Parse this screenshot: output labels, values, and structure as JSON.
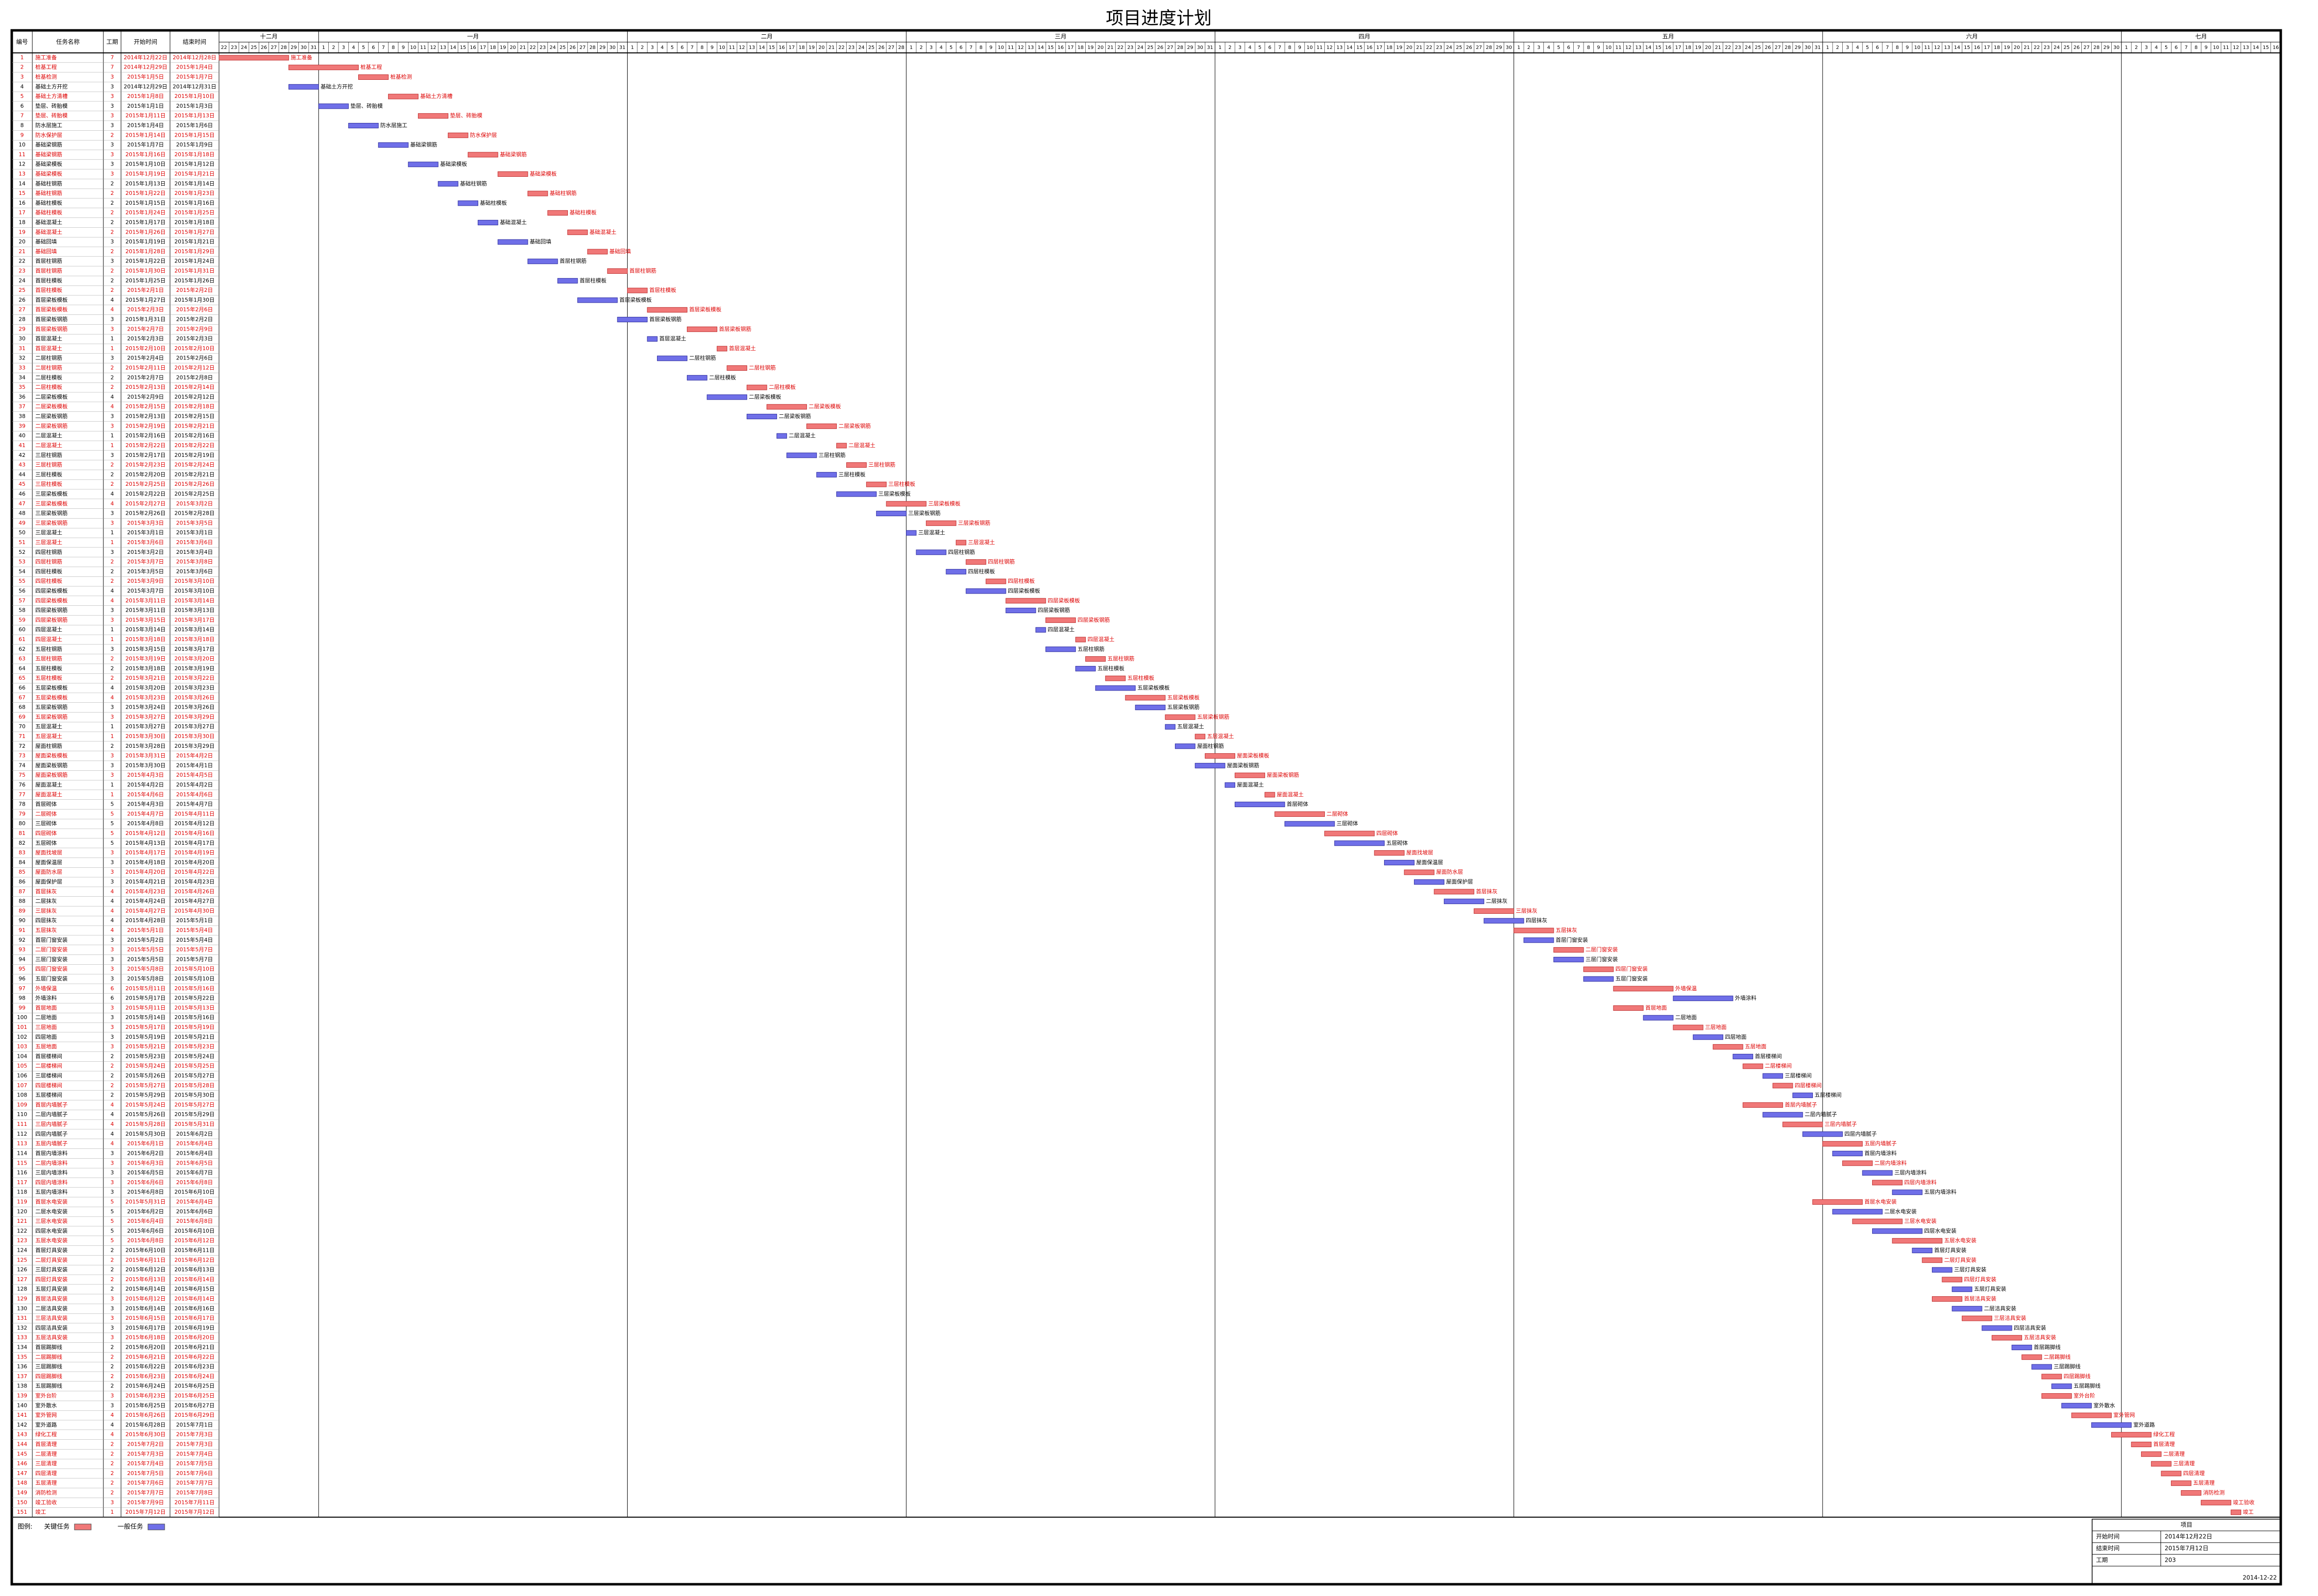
{
  "title": "项目进度计划",
  "columns": [
    "编号",
    "任务名称",
    "工期",
    "开始时间",
    "结束时间"
  ],
  "months": [
    {
      "name": "十二月",
      "days": [
        22,
        23,
        24,
        25,
        26,
        27,
        28,
        29,
        30,
        31
      ]
    },
    {
      "name": "一月",
      "days": [
        1,
        2,
        3,
        4,
        5,
        6,
        7,
        8,
        9,
        10,
        11,
        12,
        13,
        14,
        15,
        16,
        17,
        18,
        19,
        20,
        21,
        22,
        23,
        24,
        25,
        26,
        27,
        28,
        29,
        30,
        31
      ]
    },
    {
      "name": "二月",
      "days": [
        1,
        2,
        3,
        4,
        5,
        6,
        7,
        8,
        9,
        10,
        11,
        12,
        13,
        14,
        15,
        16,
        17,
        18,
        19,
        20,
        21,
        22,
        23,
        24,
        25,
        26,
        27,
        28
      ]
    },
    {
      "name": "三月",
      "days": [
        1,
        2,
        3,
        4,
        5,
        6,
        7,
        8,
        9,
        10,
        11,
        12,
        13,
        14,
        15,
        16,
        17,
        18,
        19,
        20,
        21,
        22,
        23,
        24,
        25,
        26,
        27,
        28,
        29,
        30,
        31
      ]
    },
    {
      "name": "四月",
      "days": [
        1,
        2,
        3,
        4,
        5,
        6,
        7,
        8,
        9,
        10,
        11,
        12,
        13,
        14,
        15,
        16,
        17,
        18,
        19,
        20,
        21,
        22,
        23,
        24,
        25,
        26,
        27,
        28,
        29,
        30
      ]
    },
    {
      "name": "五月",
      "days": [
        1,
        2,
        3,
        4,
        5,
        6,
        7,
        8,
        9,
        10,
        11,
        12,
        13,
        14,
        15,
        16,
        17,
        18,
        19,
        20,
        21,
        22,
        23,
        24,
        25,
        26,
        27,
        28,
        29,
        30,
        31
      ]
    },
    {
      "name": "六月",
      "days": [
        1,
        2,
        3,
        4,
        5,
        6,
        7,
        8,
        9,
        10,
        11,
        12,
        13,
        14,
        15,
        16,
        17,
        18,
        19,
        20,
        21,
        22,
        23,
        24,
        25,
        26,
        27,
        28,
        29,
        30
      ]
    },
    {
      "name": "七月",
      "days": [
        1,
        2,
        3,
        4,
        5,
        6,
        7,
        8,
        9,
        10,
        11,
        12,
        13,
        14,
        15,
        16
      ]
    }
  ],
  "tasks": [
    [
      1,
      "施工准备",
      7,
      "2014年12月22日",
      "2014年12月28日",
      true
    ],
    [
      2,
      "桩基工程",
      7,
      "2014年12月29日",
      "2015年1月4日",
      true
    ],
    [
      3,
      "桩基检测",
      3,
      "2015年1月5日",
      "2015年1月7日",
      true
    ],
    [
      4,
      "基础土方开挖",
      3,
      "2014年12月29日",
      "2014年12月31日",
      false
    ],
    [
      5,
      "基础土方清槽",
      3,
      "2015年1月8日",
      "2015年1月10日",
      true
    ],
    [
      6,
      "垫层、砖胎模",
      3,
      "2015年1月1日",
      "2015年1月3日",
      false
    ],
    [
      7,
      "垫层、砖胎模",
      3,
      "2015年1月11日",
      "2015年1月13日",
      true
    ],
    [
      8,
      "防水层施工",
      3,
      "2015年1月4日",
      "2015年1月6日",
      false
    ],
    [
      9,
      "防水保护层",
      2,
      "2015年1月14日",
      "2015年1月15日",
      true
    ],
    [
      10,
      "基础梁钢筋",
      3,
      "2015年1月7日",
      "2015年1月9日",
      false
    ],
    [
      11,
      "基础梁钢筋",
      3,
      "2015年1月16日",
      "2015年1月18日",
      true
    ],
    [
      12,
      "基础梁模板",
      3,
      "2015年1月10日",
      "2015年1月12日",
      false
    ],
    [
      13,
      "基础梁模板",
      3,
      "2015年1月19日",
      "2015年1月21日",
      true
    ],
    [
      14,
      "基础柱钢筋",
      2,
      "2015年1月13日",
      "2015年1月14日",
      false
    ],
    [
      15,
      "基础柱钢筋",
      2,
      "2015年1月22日",
      "2015年1月23日",
      true
    ],
    [
      16,
      "基础柱模板",
      2,
      "2015年1月15日",
      "2015年1月16日",
      false
    ],
    [
      17,
      "基础柱模板",
      2,
      "2015年1月24日",
      "2015年1月25日",
      true
    ],
    [
      18,
      "基础混凝土",
      2,
      "2015年1月17日",
      "2015年1月18日",
      false
    ],
    [
      19,
      "基础混凝土",
      2,
      "2015年1月26日",
      "2015年1月27日",
      true
    ],
    [
      20,
      "基础回填",
      3,
      "2015年1月19日",
      "2015年1月21日",
      false
    ],
    [
      21,
      "基础回填",
      2,
      "2015年1月28日",
      "2015年1月29日",
      true
    ],
    [
      22,
      "首层柱钢筋",
      3,
      "2015年1月22日",
      "2015年1月24日",
      false
    ],
    [
      23,
      "首层柱钢筋",
      2,
      "2015年1月30日",
      "2015年1月31日",
      true
    ],
    [
      24,
      "首层柱模板",
      2,
      "2015年1月25日",
      "2015年1月26日",
      false
    ],
    [
      25,
      "首层柱模板",
      2,
      "2015年2月1日",
      "2015年2月2日",
      true
    ],
    [
      26,
      "首层梁板模板",
      4,
      "2015年1月27日",
      "2015年1月30日",
      false
    ],
    [
      27,
      "首层梁板模板",
      4,
      "2015年2月3日",
      "2015年2月6日",
      true
    ],
    [
      28,
      "首层梁板钢筋",
      3,
      "2015年1月31日",
      "2015年2月2日",
      false
    ],
    [
      29,
      "首层梁板钢筋",
      3,
      "2015年2月7日",
      "2015年2月9日",
      true
    ],
    [
      30,
      "首层混凝土",
      1,
      "2015年2月3日",
      "2015年2月3日",
      false
    ],
    [
      31,
      "首层混凝土",
      1,
      "2015年2月10日",
      "2015年2月10日",
      true
    ],
    [
      32,
      "二层柱钢筋",
      3,
      "2015年2月4日",
      "2015年2月6日",
      false
    ],
    [
      33,
      "二层柱钢筋",
      2,
      "2015年2月11日",
      "2015年2月12日",
      true
    ],
    [
      34,
      "二层柱模板",
      2,
      "2015年2月7日",
      "2015年2月8日",
      false
    ],
    [
      35,
      "二层柱模板",
      2,
      "2015年2月13日",
      "2015年2月14日",
      true
    ],
    [
      36,
      "二层梁板模板",
      4,
      "2015年2月9日",
      "2015年2月12日",
      false
    ],
    [
      37,
      "二层梁板模板",
      4,
      "2015年2月15日",
      "2015年2月18日",
      true
    ],
    [
      38,
      "二层梁板钢筋",
      3,
      "2015年2月13日",
      "2015年2月15日",
      false
    ],
    [
      39,
      "二层梁板钢筋",
      3,
      "2015年2月19日",
      "2015年2月21日",
      true
    ],
    [
      40,
      "二层混凝土",
      1,
      "2015年2月16日",
      "2015年2月16日",
      false
    ],
    [
      41,
      "二层混凝土",
      1,
      "2015年2月22日",
      "2015年2月22日",
      true
    ],
    [
      42,
      "三层柱钢筋",
      3,
      "2015年2月17日",
      "2015年2月19日",
      false
    ],
    [
      43,
      "三层柱钢筋",
      2,
      "2015年2月23日",
      "2015年2月24日",
      true
    ],
    [
      44,
      "三层柱模板",
      2,
      "2015年2月20日",
      "2015年2月21日",
      false
    ],
    [
      45,
      "三层柱模板",
      2,
      "2015年2月25日",
      "2015年2月26日",
      true
    ],
    [
      46,
      "三层梁板模板",
      4,
      "2015年2月22日",
      "2015年2月25日",
      false
    ],
    [
      47,
      "三层梁板模板",
      4,
      "2015年2月27日",
      "2015年3月2日",
      true
    ],
    [
      48,
      "三层梁板钢筋",
      3,
      "2015年2月26日",
      "2015年2月28日",
      false
    ],
    [
      49,
      "三层梁板钢筋",
      3,
      "2015年3月3日",
      "2015年3月5日",
      true
    ],
    [
      50,
      "三层混凝土",
      1,
      "2015年3月1日",
      "2015年3月1日",
      false
    ],
    [
      51,
      "三层混凝土",
      1,
      "2015年3月6日",
      "2015年3月6日",
      true
    ],
    [
      52,
      "四层柱钢筋",
      3,
      "2015年3月2日",
      "2015年3月4日",
      false
    ],
    [
      53,
      "四层柱钢筋",
      2,
      "2015年3月7日",
      "2015年3月8日",
      true
    ],
    [
      54,
      "四层柱模板",
      2,
      "2015年3月5日",
      "2015年3月6日",
      false
    ],
    [
      55,
      "四层柱模板",
      2,
      "2015年3月9日",
      "2015年3月10日",
      true
    ],
    [
      56,
      "四层梁板模板",
      4,
      "2015年3月7日",
      "2015年3月10日",
      false
    ],
    [
      57,
      "四层梁板模板",
      4,
      "2015年3月11日",
      "2015年3月14日",
      true
    ],
    [
      58,
      "四层梁板钢筋",
      3,
      "2015年3月11日",
      "2015年3月13日",
      false
    ],
    [
      59,
      "四层梁板钢筋",
      3,
      "2015年3月15日",
      "2015年3月17日",
      true
    ],
    [
      60,
      "四层混凝土",
      1,
      "2015年3月14日",
      "2015年3月14日",
      false
    ],
    [
      61,
      "四层混凝土",
      1,
      "2015年3月18日",
      "2015年3月18日",
      true
    ],
    [
      62,
      "五层柱钢筋",
      3,
      "2015年3月15日",
      "2015年3月17日",
      false
    ],
    [
      63,
      "五层柱钢筋",
      2,
      "2015年3月19日",
      "2015年3月20日",
      true
    ],
    [
      64,
      "五层柱模板",
      2,
      "2015年3月18日",
      "2015年3月19日",
      false
    ],
    [
      65,
      "五层柱模板",
      2,
      "2015年3月21日",
      "2015年3月22日",
      true
    ],
    [
      66,
      "五层梁板模板",
      4,
      "2015年3月20日",
      "2015年3月23日",
      false
    ],
    [
      67,
      "五层梁板模板",
      4,
      "2015年3月23日",
      "2015年3月26日",
      true
    ],
    [
      68,
      "五层梁板钢筋",
      3,
      "2015年3月24日",
      "2015年3月26日",
      false
    ],
    [
      69,
      "五层梁板钢筋",
      3,
      "2015年3月27日",
      "2015年3月29日",
      true
    ],
    [
      70,
      "五层混凝土",
      1,
      "2015年3月27日",
      "2015年3月27日",
      false
    ],
    [
      71,
      "五层混凝土",
      1,
      "2015年3月30日",
      "2015年3月30日",
      true
    ],
    [
      72,
      "屋面柱钢筋",
      2,
      "2015年3月28日",
      "2015年3月29日",
      false
    ],
    [
      73,
      "屋面梁板模板",
      3,
      "2015年3月31日",
      "2015年4月2日",
      true
    ],
    [
      74,
      "屋面梁板钢筋",
      3,
      "2015年3月30日",
      "2015年4月1日",
      false
    ],
    [
      75,
      "屋面梁板钢筋",
      3,
      "2015年4月3日",
      "2015年4月5日",
      true
    ],
    [
      76,
      "屋面混凝土",
      1,
      "2015年4月2日",
      "2015年4月2日",
      false
    ],
    [
      77,
      "屋面混凝土",
      1,
      "2015年4月6日",
      "2015年4月6日",
      true
    ],
    [
      78,
      "首层砌体",
      5,
      "2015年4月3日",
      "2015年4月7日",
      false
    ],
    [
      79,
      "二层砌体",
      5,
      "2015年4月7日",
      "2015年4月11日",
      true
    ],
    [
      80,
      "三层砌体",
      5,
      "2015年4月8日",
      "2015年4月12日",
      false
    ],
    [
      81,
      "四层砌体",
      5,
      "2015年4月12日",
      "2015年4月16日",
      true
    ],
    [
      82,
      "五层砌体",
      5,
      "2015年4月13日",
      "2015年4月17日",
      false
    ],
    [
      83,
      "屋面找坡层",
      3,
      "2015年4月17日",
      "2015年4月19日",
      true
    ],
    [
      84,
      "屋面保温层",
      3,
      "2015年4月18日",
      "2015年4月20日",
      false
    ],
    [
      85,
      "屋面防水层",
      3,
      "2015年4月20日",
      "2015年4月22日",
      true
    ],
    [
      86,
      "屋面保护层",
      3,
      "2015年4月21日",
      "2015年4月23日",
      false
    ],
    [
      87,
      "首层抹灰",
      4,
      "2015年4月23日",
      "2015年4月26日",
      true
    ],
    [
      88,
      "二层抹灰",
      4,
      "2015年4月24日",
      "2015年4月27日",
      false
    ],
    [
      89,
      "三层抹灰",
      4,
      "2015年4月27日",
      "2015年4月30日",
      true
    ],
    [
      90,
      "四层抹灰",
      4,
      "2015年4月28日",
      "2015年5月1日",
      false
    ],
    [
      91,
      "五层抹灰",
      4,
      "2015年5月1日",
      "2015年5月4日",
      true
    ],
    [
      92,
      "首层门窗安装",
      3,
      "2015年5月2日",
      "2015年5月4日",
      false
    ],
    [
      93,
      "二层门窗安装",
      3,
      "2015年5月5日",
      "2015年5月7日",
      true
    ],
    [
      94,
      "三层门窗安装",
      3,
      "2015年5月5日",
      "2015年5月7日",
      false
    ],
    [
      95,
      "四层门窗安装",
      3,
      "2015年5月8日",
      "2015年5月10日",
      true
    ],
    [
      96,
      "五层门窗安装",
      3,
      "2015年5月8日",
      "2015年5月10日",
      false
    ],
    [
      97,
      "外墙保温",
      6,
      "2015年5月11日",
      "2015年5月16日",
      true
    ],
    [
      98,
      "外墙涂料",
      6,
      "2015年5月17日",
      "2015年5月22日",
      false
    ],
    [
      99,
      "首层地面",
      3,
      "2015年5月11日",
      "2015年5月13日",
      true
    ],
    [
      100,
      "二层地面",
      3,
      "2015年5月14日",
      "2015年5月16日",
      false
    ],
    [
      101,
      "三层地面",
      3,
      "2015年5月17日",
      "2015年5月19日",
      true
    ],
    [
      102,
      "四层地面",
      3,
      "2015年5月19日",
      "2015年5月21日",
      false
    ],
    [
      103,
      "五层地面",
      3,
      "2015年5月21日",
      "2015年5月23日",
      true
    ],
    [
      104,
      "首层楼梯间",
      2,
      "2015年5月23日",
      "2015年5月24日",
      false
    ],
    [
      105,
      "二层楼梯间",
      2,
      "2015年5月24日",
      "2015年5月25日",
      true
    ],
    [
      106,
      "三层楼梯间",
      2,
      "2015年5月26日",
      "2015年5月27日",
      false
    ],
    [
      107,
      "四层楼梯间",
      2,
      "2015年5月27日",
      "2015年5月28日",
      true
    ],
    [
      108,
      "五层楼梯间",
      2,
      "2015年5月29日",
      "2015年5月30日",
      false
    ],
    [
      109,
      "首层内墙腻子",
      4,
      "2015年5月24日",
      "2015年5月27日",
      true
    ],
    [
      110,
      "二层内墙腻子",
      4,
      "2015年5月26日",
      "2015年5月29日",
      false
    ],
    [
      111,
      "三层内墙腻子",
      4,
      "2015年5月28日",
      "2015年5月31日",
      true
    ],
    [
      112,
      "四层内墙腻子",
      4,
      "2015年5月30日",
      "2015年6月2日",
      false
    ],
    [
      113,
      "五层内墙腻子",
      4,
      "2015年6月1日",
      "2015年6月4日",
      true
    ],
    [
      114,
      "首层内墙涂料",
      3,
      "2015年6月2日",
      "2015年6月4日",
      false
    ],
    [
      115,
      "二层内墙涂料",
      3,
      "2015年6月3日",
      "2015年6月5日",
      true
    ],
    [
      116,
      "三层内墙涂料",
      3,
      "2015年6月5日",
      "2015年6月7日",
      false
    ],
    [
      117,
      "四层内墙涂料",
      3,
      "2015年6月6日",
      "2015年6月8日",
      true
    ],
    [
      118,
      "五层内墙涂料",
      3,
      "2015年6月8日",
      "2015年6月10日",
      false
    ],
    [
      119,
      "首层水电安装",
      5,
      "2015年5月31日",
      "2015年6月4日",
      true
    ],
    [
      120,
      "二层水电安装",
      5,
      "2015年6月2日",
      "2015年6月6日",
      false
    ],
    [
      121,
      "三层水电安装",
      5,
      "2015年6月4日",
      "2015年6月8日",
      true
    ],
    [
      122,
      "四层水电安装",
      5,
      "2015年6月6日",
      "2015年6月10日",
      false
    ],
    [
      123,
      "五层水电安装",
      5,
      "2015年6月8日",
      "2015年6月12日",
      true
    ],
    [
      124,
      "首层灯具安装",
      2,
      "2015年6月10日",
      "2015年6月11日",
      false
    ],
    [
      125,
      "二层灯具安装",
      2,
      "2015年6月11日",
      "2015年6月12日",
      true
    ],
    [
      126,
      "三层灯具安装",
      2,
      "2015年6月12日",
      "2015年6月13日",
      false
    ],
    [
      127,
      "四层灯具安装",
      2,
      "2015年6月13日",
      "2015年6月14日",
      true
    ],
    [
      128,
      "五层灯具安装",
      2,
      "2015年6月14日",
      "2015年6月15日",
      false
    ],
    [
      129,
      "首层洁具安装",
      3,
      "2015年6月12日",
      "2015年6月14日",
      true
    ],
    [
      130,
      "二层洁具安装",
      3,
      "2015年6月14日",
      "2015年6月16日",
      false
    ],
    [
      131,
      "三层洁具安装",
      3,
      "2015年6月15日",
      "2015年6月17日",
      true
    ],
    [
      132,
      "四层洁具安装",
      3,
      "2015年6月17日",
      "2015年6月19日",
      false
    ],
    [
      133,
      "五层洁具安装",
      3,
      "2015年6月18日",
      "2015年6月20日",
      true
    ],
    [
      134,
      "首层踢脚线",
      2,
      "2015年6月20日",
      "2015年6月21日",
      false
    ],
    [
      135,
      "二层踢脚线",
      2,
      "2015年6月21日",
      "2015年6月22日",
      true
    ],
    [
      136,
      "三层踢脚线",
      2,
      "2015年6月22日",
      "2015年6月23日",
      false
    ],
    [
      137,
      "四层踢脚线",
      2,
      "2015年6月23日",
      "2015年6月24日",
      true
    ],
    [
      138,
      "五层踢脚线",
      2,
      "2015年6月24日",
      "2015年6月25日",
      false
    ],
    [
      139,
      "室外台阶",
      3,
      "2015年6月23日",
      "2015年6月25日",
      true
    ],
    [
      140,
      "室外散水",
      3,
      "2015年6月25日",
      "2015年6月27日",
      false
    ],
    [
      141,
      "室外管网",
      4,
      "2015年6月26日",
      "2015年6月29日",
      true
    ],
    [
      142,
      "室外道路",
      4,
      "2015年6月28日",
      "2015年7月1日",
      false
    ],
    [
      143,
      "绿化工程",
      4,
      "2015年6月30日",
      "2015年7月3日",
      true
    ],
    [
      144,
      "首层清理",
      2,
      "2015年7月2日",
      "2015年7月3日",
      true
    ],
    [
      145,
      "二层清理",
      2,
      "2015年7月3日",
      "2015年7月4日",
      true
    ],
    [
      146,
      "三层清理",
      2,
      "2015年7月4日",
      "2015年7月5日",
      true
    ],
    [
      147,
      "四层清理",
      2,
      "2015年7月5日",
      "2015年7月6日",
      true
    ],
    [
      148,
      "五层清理",
      2,
      "2015年7月6日",
      "2015年7月7日",
      true
    ],
    [
      149,
      "消防检测",
      2,
      "2015年7月7日",
      "2015年7月8日",
      true
    ],
    [
      150,
      "竣工验收",
      3,
      "2015年7月9日",
      "2015年7月11日",
      true
    ],
    [
      151,
      "竣工",
      1,
      "2015年7月12日",
      "2015年7月12日",
      true
    ]
  ],
  "legend": {
    "label": "图例:",
    "items": [
      {
        "name": "关键任务",
        "color": "#f07878"
      },
      {
        "name": "一般任务",
        "color": "#6f6fe8"
      }
    ]
  },
  "info": {
    "title": "项目",
    "rows": [
      [
        "开始时间",
        "2014年12月22日"
      ],
      [
        "结束时间",
        "2015年7月12日"
      ],
      [
        "工期",
        "203"
      ]
    ],
    "date": "2014-12-22"
  }
}
